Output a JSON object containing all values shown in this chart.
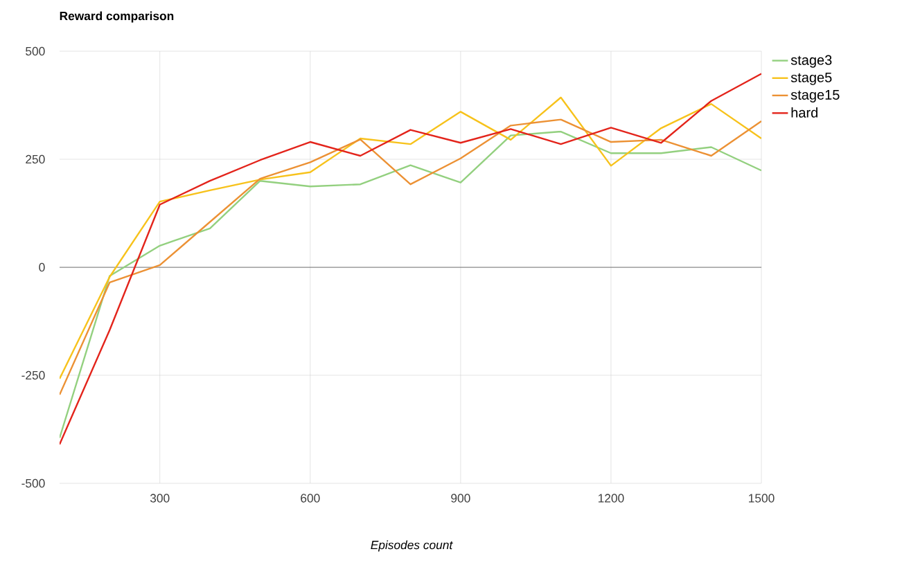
{
  "chart_data": {
    "type": "line",
    "title": "Reward comparison",
    "xlabel": "Episodes count",
    "x": [
      100,
      200,
      300,
      400,
      500,
      600,
      700,
      800,
      900,
      1000,
      1100,
      1200,
      1300,
      1400,
      1500
    ],
    "series": [
      {
        "name": "stage3",
        "color": "#93d07f",
        "values": [
          -395,
          -20,
          50,
          90,
          200,
          187,
          192,
          236,
          196,
          305,
          314,
          264,
          264,
          278,
          224
        ]
      },
      {
        "name": "stage5",
        "color": "#f7c21b",
        "values": [
          -258,
          -22,
          152,
          178,
          203,
          220,
          298,
          285,
          360,
          295,
          393,
          235,
          322,
          378,
          298
        ]
      },
      {
        "name": "stage15",
        "color": "#ec9134",
        "values": [
          -295,
          -35,
          5,
          105,
          205,
          243,
          296,
          192,
          252,
          328,
          342,
          290,
          295,
          258,
          338
        ]
      },
      {
        "name": "hard",
        "color": "#e3241b",
        "values": [
          -410,
          -145,
          145,
          200,
          248,
          290,
          258,
          318,
          288,
          320,
          285,
          323,
          288,
          385,
          448
        ]
      }
    ],
    "xlim": [
      100,
      1500
    ],
    "ylim": [
      -500,
      500
    ],
    "xticks": [
      300,
      600,
      900,
      1200,
      1500
    ],
    "yticks": [
      -500,
      -250,
      0,
      250,
      500
    ],
    "grid": true,
    "legend": "right",
    "ref_lines": [
      {
        "axis": "y",
        "value": 0,
        "color": "#333333"
      }
    ]
  }
}
